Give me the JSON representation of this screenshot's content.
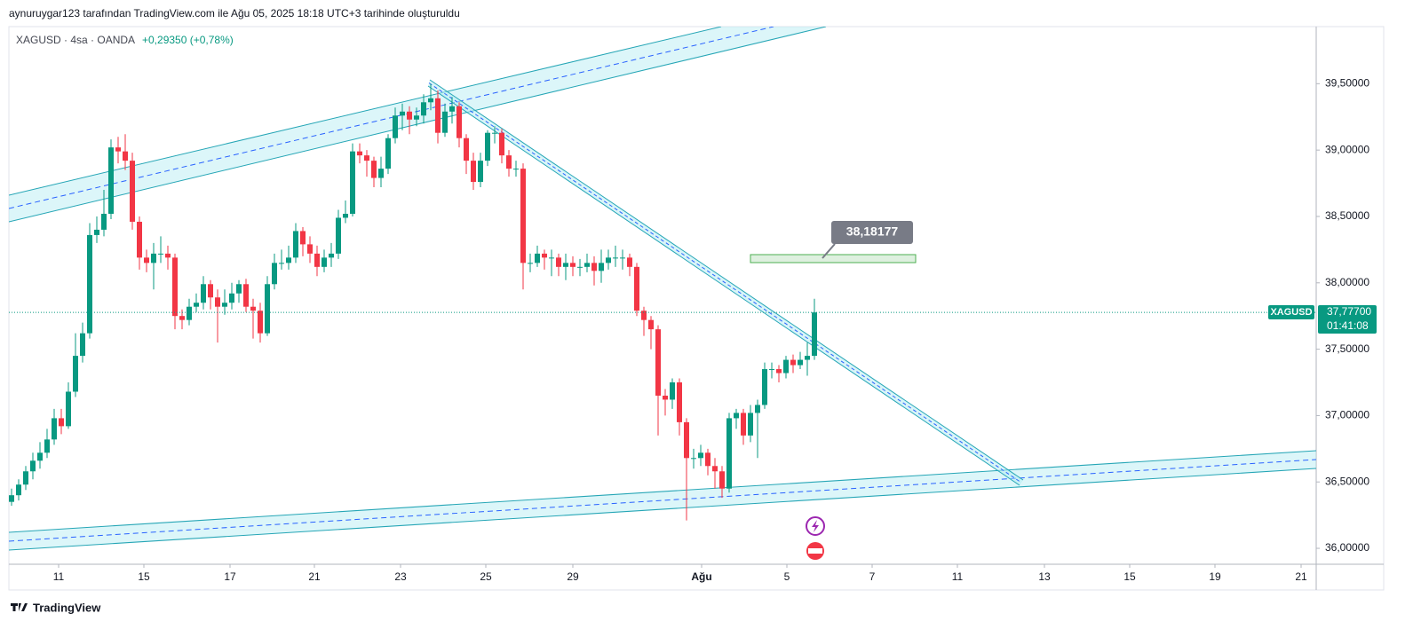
{
  "header": {
    "created_by": "aynuruygar123 tarafından TradingView.com ile Ağu 05, 2025 18:18 UTC+3 tarihinde oluşturuldu",
    "symbol_line": "XAGUSD · 4sa · OANDA",
    "change": "+0,29350 (+0,78%)"
  },
  "footer": {
    "logo": "TradingView"
  },
  "annotation": "38,18177",
  "last_price": {
    "symbol": "XAGUSD",
    "label": "37,77700",
    "countdown": "01:41:08"
  },
  "chart_data": {
    "type": "candlestick",
    "up_color": "#089981",
    "down_color": "#f23645",
    "xlim": [
      -0.375,
      183.375
    ],
    "xticks": [
      {
        "value": 6.625,
        "label": "11"
      },
      {
        "value": 18.625,
        "label": "15"
      },
      {
        "value": 30.75,
        "label": "17"
      },
      {
        "value": 42.625,
        "label": "21"
      },
      {
        "value": 54.75,
        "label": "23"
      },
      {
        "value": 66.75,
        "label": "25"
      },
      {
        "value": 79,
        "label": "29"
      },
      {
        "value": 97.125,
        "label": "Ağu"
      },
      {
        "value": 109.125,
        "label": "5"
      },
      {
        "value": 121.125,
        "label": "7"
      },
      {
        "value": 133.125,
        "label": "11"
      },
      {
        "value": 145.375,
        "label": "13"
      },
      {
        "value": 157.375,
        "label": "15"
      },
      {
        "value": 169.375,
        "label": "19"
      },
      {
        "value": 181.5,
        "label": "21"
      }
    ],
    "ylim": [
      35.88,
      39.93
    ],
    "yticks": [
      {
        "value": 36.0,
        "label": "36,00000"
      },
      {
        "value": 36.5,
        "label": "36,50000"
      },
      {
        "value": 37.0,
        "label": "37,00000"
      },
      {
        "value": 37.5,
        "label": "37,50000"
      },
      {
        "value": 38.0,
        "label": "38,00000"
      },
      {
        "value": 38.5,
        "label": "38,50000"
      },
      {
        "value": 39.0,
        "label": "39,00000"
      },
      {
        "value": 39.5,
        "label": "39,50000"
      }
    ],
    "open": [
      36.35,
      36.4,
      36.48,
      36.58,
      36.66,
      36.72,
      36.82,
      36.98,
      36.92,
      37.18,
      37.45,
      37.62,
      38.36,
      38.4,
      38.52,
      39.02,
      38.99,
      38.92,
      38.46,
      38.19,
      38.15,
      38.22,
      38.22,
      38.19,
      37.75,
      37.72,
      37.82,
      37.85,
      37.99,
      37.89,
      37.82,
      37.85,
      37.92,
      37.99,
      37.82,
      37.79,
      37.62,
      37.99,
      38.15,
      38.15,
      38.19,
      38.39,
      38.29,
      38.22,
      38.12,
      38.19,
      38.22,
      38.49,
      38.52,
      38.99,
      38.96,
      38.92,
      38.79,
      38.86,
      39.09,
      39.26,
      39.29,
      39.23,
      39.26,
      39.36,
      39.39,
      39.13,
      39.29,
      39.33,
      39.09,
      38.92,
      38.76,
      38.92,
      39.13,
      39.13,
      38.96,
      38.86,
      38.86,
      38.15,
      38.15,
      38.22,
      38.19,
      38.19,
      38.12,
      38.15,
      38.12,
      38.12,
      38.15,
      38.09,
      38.15,
      38.19,
      38.19,
      38.19,
      38.12,
      37.79,
      37.72,
      37.65,
      37.15,
      37.12,
      37.25,
      36.95,
      36.68,
      36.68,
      36.72,
      36.62,
      36.58,
      36.45,
      36.98,
      37.02,
      36.85,
      37.02,
      37.08,
      37.35,
      37.35,
      37.32,
      37.42,
      37.38,
      37.42,
      37.45
    ],
    "high": [
      36.45,
      36.52,
      36.62,
      36.72,
      36.8,
      36.9,
      37.05,
      37.05,
      37.25,
      37.62,
      37.7,
      38.45,
      38.5,
      38.7,
      39.08,
      39.1,
      39.12,
      38.98,
      38.5,
      38.25,
      38.3,
      38.35,
      38.28,
      38.22,
      37.8,
      37.88,
      37.92,
      38.05,
      38.02,
      37.95,
      37.95,
      38.0,
      38.02,
      38.03,
      37.88,
      37.85,
      38.05,
      38.22,
      38.25,
      38.28,
      38.45,
      38.42,
      38.35,
      38.28,
      38.25,
      38.3,
      38.55,
      38.62,
      39.05,
      39.05,
      39.0,
      38.95,
      38.95,
      39.12,
      39.32,
      39.35,
      39.33,
      39.32,
      39.42,
      39.5,
      39.45,
      39.35,
      39.4,
      39.36,
      39.12,
      38.98,
      38.98,
      39.15,
      39.18,
      39.16,
      39.0,
      38.92,
      38.9,
      38.22,
      38.28,
      38.25,
      38.25,
      38.22,
      38.22,
      38.2,
      38.18,
      38.22,
      38.2,
      38.25,
      38.25,
      38.28,
      38.25,
      38.22,
      38.15,
      37.82,
      37.75,
      37.68,
      37.2,
      37.28,
      37.28,
      36.98,
      36.75,
      36.78,
      36.75,
      36.68,
      36.62,
      37.02,
      37.05,
      37.05,
      37.08,
      37.12,
      37.4,
      37.4,
      37.38,
      37.45,
      37.46,
      37.48,
      37.55,
      37.88
    ],
    "low": [
      36.32,
      36.36,
      36.44,
      36.52,
      36.6,
      36.68,
      36.78,
      36.86,
      36.9,
      37.14,
      37.4,
      37.58,
      38.3,
      38.35,
      38.48,
      38.9,
      38.85,
      38.4,
      38.1,
      38.08,
      37.95,
      38.15,
      38.1,
      37.65,
      37.65,
      37.68,
      37.78,
      37.8,
      37.8,
      37.55,
      37.76,
      37.8,
      37.85,
      37.78,
      37.58,
      37.55,
      37.6,
      37.95,
      38.1,
      38.1,
      38.15,
      38.2,
      38.15,
      38.05,
      38.08,
      38.12,
      38.18,
      38.45,
      38.5,
      38.9,
      38.8,
      38.72,
      38.72,
      38.82,
      39.05,
      39.15,
      39.12,
      39.18,
      39.2,
      39.3,
      39.05,
      39.1,
      39.2,
      39.02,
      38.82,
      38.7,
      38.72,
      38.88,
      39.05,
      38.9,
      38.8,
      38.8,
      37.95,
      38.08,
      38.12,
      38.1,
      38.05,
      38.05,
      38.02,
      38.05,
      38.05,
      38.08,
      37.98,
      38.0,
      38.1,
      38.12,
      38.1,
      38.05,
      37.75,
      37.6,
      37.5,
      36.85,
      37.0,
      37.05,
      36.85,
      36.21,
      36.6,
      36.62,
      36.55,
      36.45,
      36.38,
      36.42,
      36.9,
      36.78,
      36.8,
      36.68,
      37.05,
      37.28,
      37.25,
      37.28,
      37.32,
      37.35,
      37.3,
      37.42
    ],
    "close": [
      36.4,
      36.48,
      36.58,
      36.66,
      36.72,
      36.82,
      36.98,
      36.92,
      37.18,
      37.45,
      37.62,
      38.36,
      38.4,
      38.52,
      39.02,
      38.99,
      38.92,
      38.46,
      38.19,
      38.15,
      38.22,
      38.22,
      38.19,
      37.75,
      37.72,
      37.82,
      37.85,
      37.99,
      37.89,
      37.82,
      37.85,
      37.92,
      37.99,
      37.82,
      37.79,
      37.62,
      37.99,
      38.15,
      38.15,
      38.19,
      38.39,
      38.29,
      38.22,
      38.12,
      38.19,
      38.22,
      38.49,
      38.52,
      38.99,
      38.96,
      38.92,
      38.79,
      38.86,
      39.09,
      39.26,
      39.29,
      39.23,
      39.26,
      39.36,
      39.39,
      39.13,
      39.29,
      39.33,
      39.09,
      38.92,
      38.76,
      38.92,
      39.13,
      39.13,
      38.96,
      38.86,
      38.86,
      38.15,
      38.15,
      38.22,
      38.19,
      38.19,
      38.12,
      38.15,
      38.12,
      38.12,
      38.15,
      38.09,
      38.15,
      38.19,
      38.19,
      38.19,
      38.12,
      37.79,
      37.72,
      37.65,
      37.15,
      37.12,
      37.25,
      36.95,
      36.68,
      36.68,
      36.72,
      36.62,
      36.58,
      36.45,
      36.98,
      37.02,
      36.85,
      37.02,
      37.08,
      37.35,
      37.35,
      37.32,
      37.42,
      37.38,
      37.42,
      37.45,
      37.777
    ]
  }
}
